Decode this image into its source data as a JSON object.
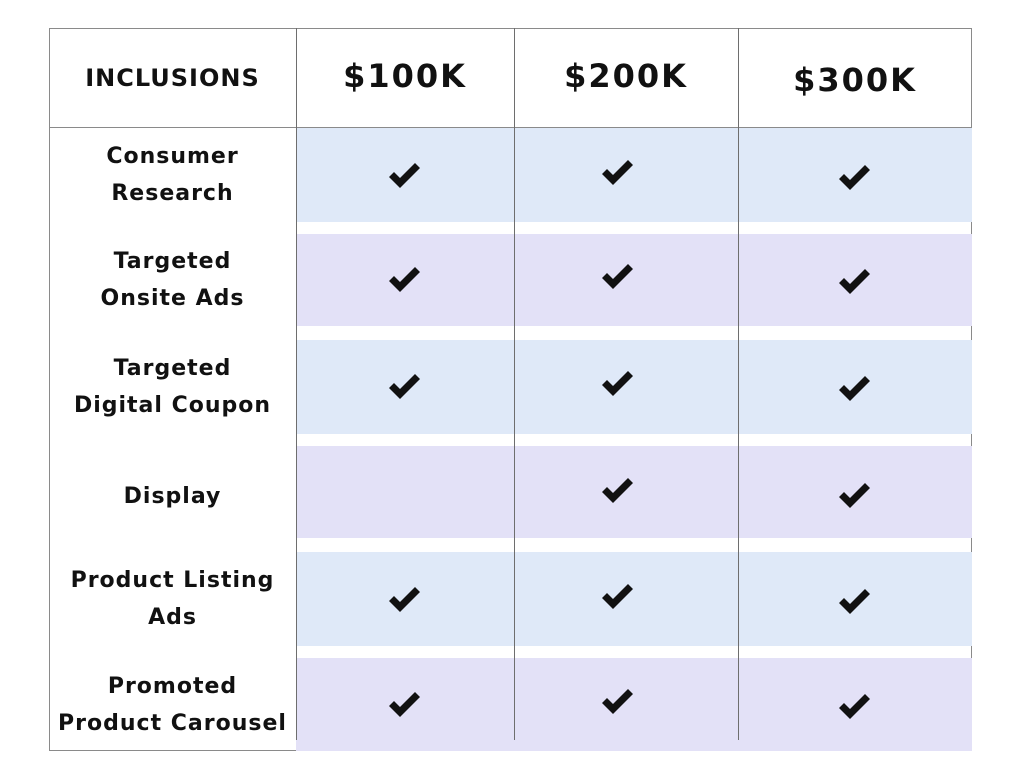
{
  "table": {
    "headers": [
      "INCLUSIONS",
      "$100K",
      "$200K",
      "$300K"
    ],
    "rows": [
      {
        "label_lines": [
          "Consumer",
          "Research"
        ],
        "included": [
          true,
          true,
          true
        ]
      },
      {
        "label_lines": [
          "Targeted",
          "Onsite Ads"
        ],
        "included": [
          true,
          true,
          true
        ]
      },
      {
        "label_lines": [
          "Targeted",
          "Digital Coupon"
        ],
        "included": [
          true,
          true,
          true
        ]
      },
      {
        "label_lines": [
          "Display"
        ],
        "included": [
          false,
          true,
          true
        ]
      },
      {
        "label_lines": [
          "Product Listing",
          "Ads"
        ],
        "included": [
          true,
          true,
          true
        ]
      },
      {
        "label_lines": [
          "Promoted",
          "Product Carousel"
        ],
        "included": [
          true,
          true,
          true
        ]
      }
    ],
    "check_icon": "checkmark-icon",
    "colors": {
      "row_blue": "#dfe9f8",
      "row_violet": "#e3e1f7",
      "check": "#111111",
      "border": "#8a8a8a"
    }
  }
}
